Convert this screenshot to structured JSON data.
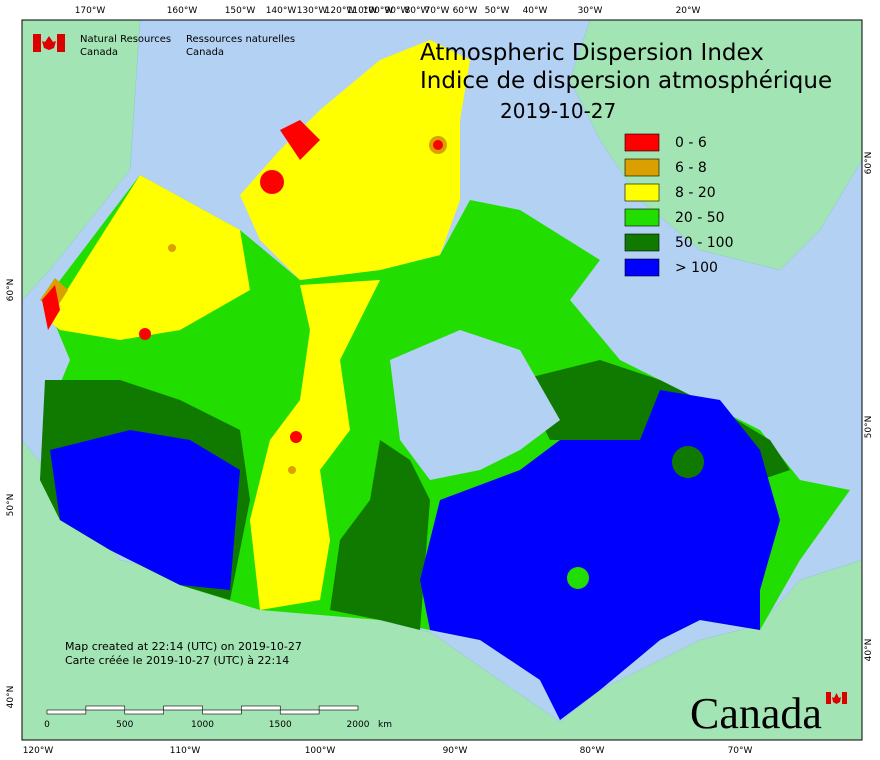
{
  "header": {
    "agency_en": [
      "Natural Resources",
      "Canada"
    ],
    "agency_fr": [
      "Ressources naturelles",
      "Canada"
    ]
  },
  "title": {
    "line1": "Atmospheric Dispersion Index",
    "line2": "Indice de dispersion atmosphérique",
    "date": "2019-10-27"
  },
  "legend": [
    {
      "label": "0 - 6",
      "color": "#ff0000"
    },
    {
      "label": "6 - 8",
      "color": "#d9a000"
    },
    {
      "label": "8 - 20",
      "color": "#ffff00"
    },
    {
      "label": "20 - 50",
      "color": "#22dd00"
    },
    {
      "label": "50 - 100",
      "color": "#107a00"
    },
    {
      "label": "> 100",
      "color": "#0000ff"
    }
  ],
  "notes": [
    "Map created at 22:14 (UTC) on 2019-10-27",
    "Carte créée le 2019-10-27 (UTC) à 22:14"
  ],
  "scale_bar": {
    "labels": [
      "0",
      "500",
      "1000",
      "1500",
      "2000"
    ],
    "unit": "km"
  },
  "graticule": {
    "top": [
      "170°W",
      "160°W",
      "150°W",
      "140°W",
      "130°W",
      "120°W",
      "110°W",
      "100°W",
      "90°W",
      "80°W",
      "70°W",
      "60°W",
      "50°W",
      "40°W",
      "30°W",
      "20°W"
    ],
    "bottom": [
      "120°W",
      "110°W",
      "100°W",
      "90°W",
      "80°W",
      "70°W"
    ],
    "left": [
      "60°N",
      "50°N",
      "40°N"
    ],
    "right": [
      "60°N",
      "50°N",
      "40°N"
    ]
  },
  "wordmark": "Canada"
}
